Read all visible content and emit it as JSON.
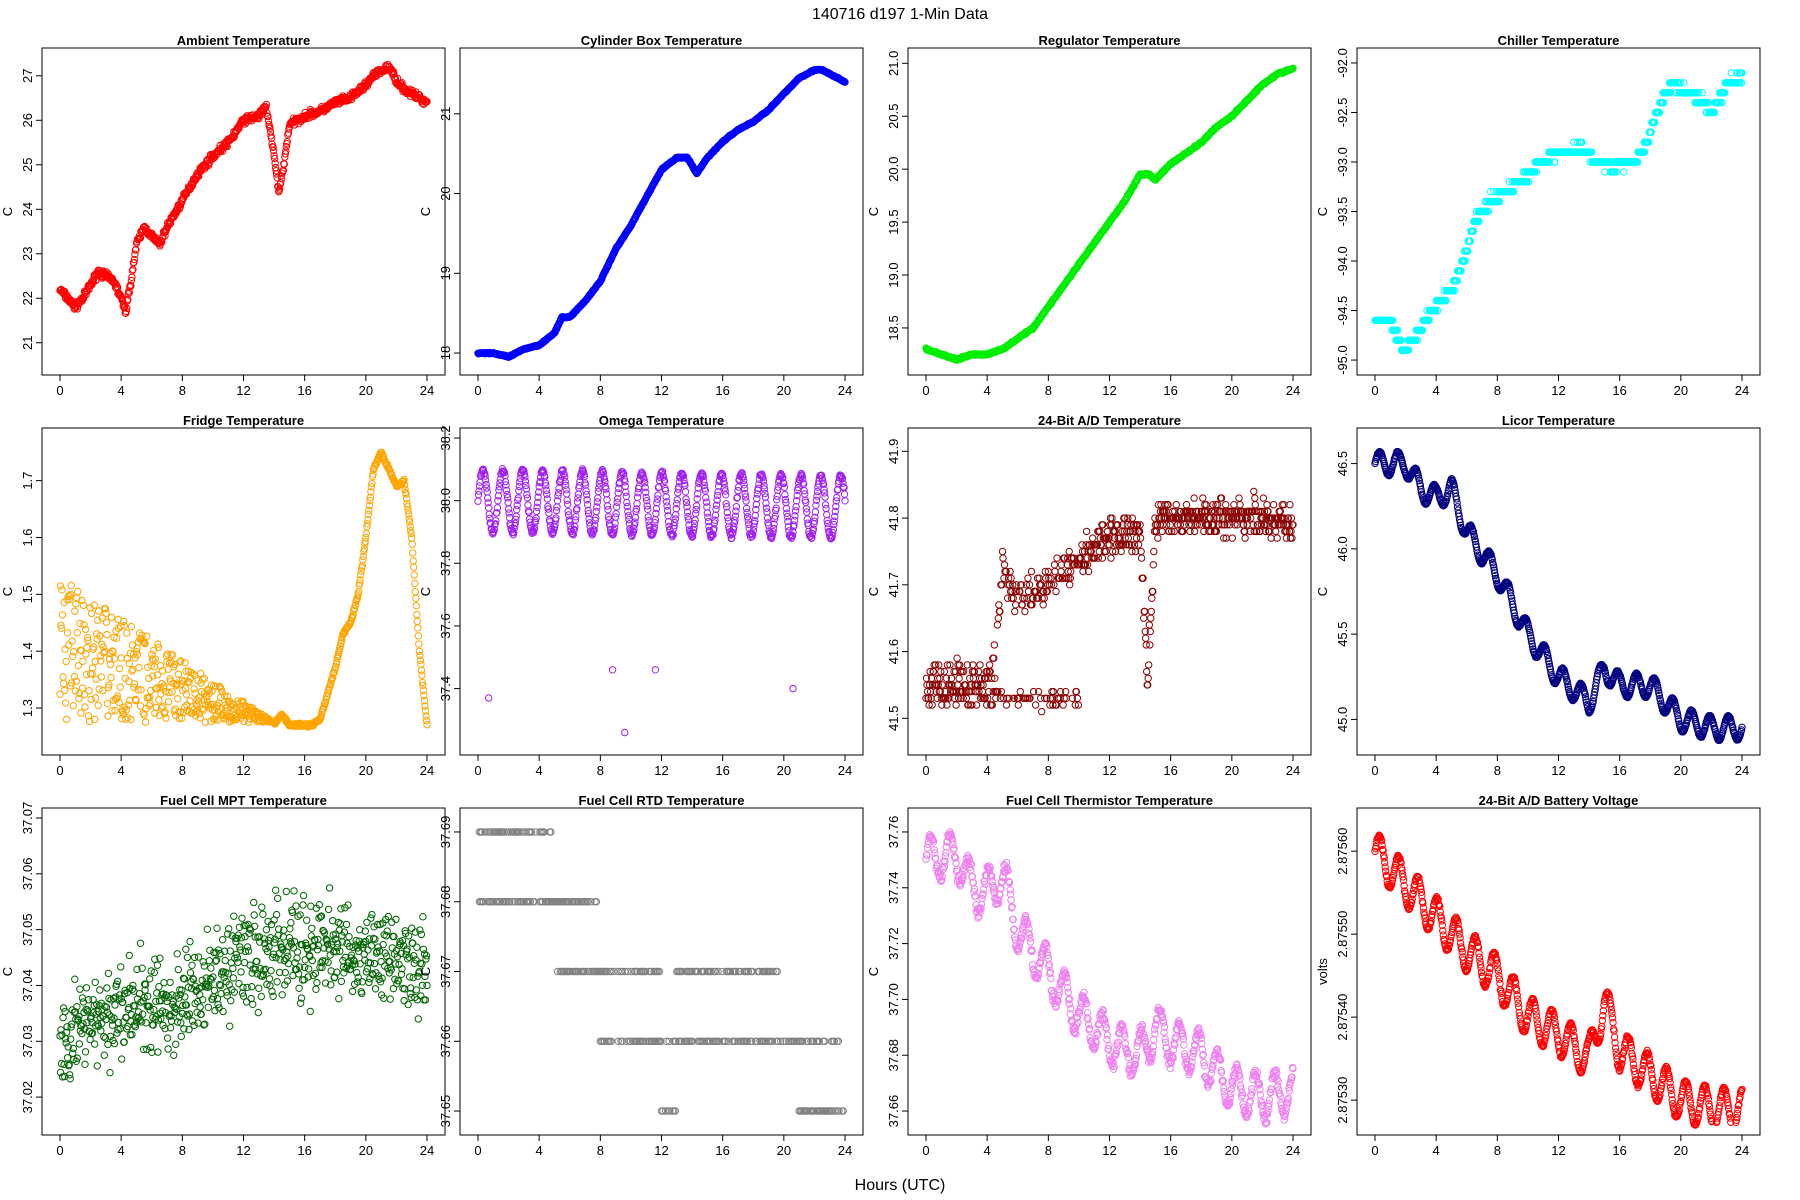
{
  "page": {
    "title": "140716   d197   1-Min Data",
    "xlabel": "Hours (UTC)"
  },
  "chart_data": [
    {
      "type": "scatter",
      "title": "Ambient Temperature",
      "ylabel": "C",
      "color": "#ff0000",
      "xlim": [
        0,
        24
      ],
      "ylim": [
        20.5,
        27.4
      ],
      "yticks": [
        "21",
        "22",
        "23",
        "24",
        "25",
        "26",
        "27"
      ],
      "xticks": [
        "0",
        "4",
        "8",
        "12",
        "16",
        "20",
        "24"
      ],
      "x": [
        0,
        0.5,
        1,
        1.5,
        2,
        2.5,
        3,
        3.5,
        4,
        4.3,
        4.6,
        5,
        5.5,
        6,
        6.5,
        7,
        8,
        9,
        10,
        11,
        12,
        13,
        13.5,
        14,
        14.3,
        14.6,
        15,
        16,
        17,
        18,
        19,
        20,
        20.5,
        21,
        21.5,
        22,
        22.5,
        23,
        23.5,
        24
      ],
      "y": [
        22.2,
        22.0,
        21.8,
        22.0,
        22.3,
        22.6,
        22.5,
        22.4,
        22.0,
        21.7,
        22.3,
        23.2,
        23.6,
        23.4,
        23.2,
        23.6,
        24.2,
        24.8,
        25.2,
        25.5,
        26.0,
        26.1,
        26.3,
        25.2,
        24.4,
        24.9,
        25.9,
        26.1,
        26.2,
        26.4,
        26.5,
        26.8,
        27.0,
        27.1,
        27.2,
        26.9,
        26.7,
        26.6,
        26.5,
        26.4
      ],
      "noise": 0.12
    },
    {
      "type": "scatter",
      "title": "Cylinder Box Temperature",
      "ylabel": "C",
      "color": "#0000ff",
      "xlim": [
        0,
        24
      ],
      "ylim": [
        17.85,
        21.7
      ],
      "yticks": [
        "18",
        "19",
        "20",
        "21"
      ],
      "xticks": [
        "0",
        "4",
        "8",
        "12",
        "16",
        "20",
        "24"
      ],
      "x": [
        0,
        1,
        2,
        3,
        4,
        5,
        5.5,
        6,
        7,
        8,
        9,
        10,
        11,
        12,
        13,
        13.7,
        14.3,
        15,
        16,
        17,
        18,
        19,
        20,
        21,
        22,
        22.5,
        23,
        24
      ],
      "y": [
        18.0,
        18.0,
        17.95,
        18.05,
        18.1,
        18.25,
        18.45,
        18.45,
        18.65,
        18.9,
        19.3,
        19.6,
        19.95,
        20.3,
        20.45,
        20.45,
        20.25,
        20.45,
        20.65,
        20.8,
        20.9,
        21.05,
        21.25,
        21.45,
        21.55,
        21.55,
        21.5,
        21.4
      ],
      "noise": 0.012
    },
    {
      "type": "scatter",
      "title": "Regulator Temperature",
      "ylabel": "C",
      "color": "#00ee00",
      "xlim": [
        0,
        24
      ],
      "ylim": [
        18.15,
        21.05
      ],
      "yticks": [
        "18.5",
        "19.0",
        "19.5",
        "20.0",
        "20.5",
        "21.0"
      ],
      "xticks": [
        "0",
        "4",
        "8",
        "12",
        "16",
        "20",
        "24"
      ],
      "x": [
        0,
        1,
        2,
        3,
        4,
        5,
        5.5,
        6,
        7,
        8,
        9,
        10,
        11,
        12,
        13,
        14,
        14.6,
        15,
        16,
        17,
        18,
        19,
        20,
        21,
        22,
        23,
        24
      ],
      "y": [
        18.3,
        18.25,
        18.2,
        18.25,
        18.25,
        18.3,
        18.35,
        18.4,
        18.5,
        18.7,
        18.9,
        19.1,
        19.3,
        19.5,
        19.7,
        19.95,
        19.95,
        19.9,
        20.05,
        20.15,
        20.25,
        20.4,
        20.5,
        20.65,
        20.8,
        20.9,
        20.95
      ],
      "noise": 0.012
    },
    {
      "type": "scatter",
      "title": "Chiller Temperature",
      "ylabel": "C",
      "color": "#00ffff",
      "xlim": [
        0,
        24
      ],
      "ylim": [
        -95.05,
        -91.95
      ],
      "yticks": [
        "-95.0",
        "-94.5",
        "-94.0",
        "-93.5",
        "-93.0",
        "-92.5",
        "-92.0"
      ],
      "xticks": [
        "0",
        "4",
        "8",
        "12",
        "16",
        "20",
        "24"
      ],
      "x": [
        0,
        1,
        1.8,
        2.5,
        3.3,
        4,
        5,
        6,
        6.5,
        7.5,
        8.5,
        9.5,
        10.5,
        11.5,
        12.5,
        13.5,
        14.5,
        15.5,
        16.5,
        17.5,
        18.2,
        19,
        19.5,
        20.5,
        21.5,
        22,
        22.5,
        23,
        24
      ],
      "y": [
        -94.6,
        -94.6,
        -94.9,
        -94.8,
        -94.6,
        -94.45,
        -94.3,
        -93.9,
        -93.6,
        -93.4,
        -93.3,
        -93.2,
        -93.05,
        -92.95,
        -92.9,
        -92.85,
        -93.0,
        -93.05,
        -93.0,
        -92.9,
        -92.6,
        -92.3,
        -92.2,
        -92.3,
        -92.4,
        -92.5,
        -92.4,
        -92.2,
        -92.15
      ],
      "noise": 0.06,
      "stepY": 0.1
    },
    {
      "type": "scatter",
      "title": "Fridge Temperature",
      "ylabel": "C",
      "color": "#ffa500",
      "xlim": [
        0,
        24
      ],
      "ylim": [
        1.235,
        1.775
      ],
      "yticks": [
        "1.3",
        "1.4",
        "1.5",
        "1.6",
        "1.7"
      ],
      "xticks": [
        "0",
        "4",
        "8",
        "12",
        "16",
        "20",
        "24"
      ],
      "x": [
        0,
        2,
        4,
        6,
        8,
        10,
        12,
        13,
        14,
        14.5,
        15,
        16,
        16.5,
        17,
        18,
        18.5,
        19,
        19.5,
        20,
        20.5,
        21,
        21.5,
        22,
        22.5,
        23,
        23.5,
        24
      ],
      "y": [
        1.3,
        1.3,
        1.3,
        1.3,
        1.3,
        1.3,
        1.28,
        1.27,
        1.27,
        1.29,
        1.27,
        1.27,
        1.27,
        1.28,
        1.37,
        1.43,
        1.45,
        1.5,
        1.6,
        1.72,
        1.75,
        1.72,
        1.69,
        1.7,
        1.6,
        1.4,
        1.27
      ],
      "noise": 0.004,
      "band": {
        "from": 0,
        "to": 14,
        "top0": 1.53,
        "bottom": 1.275
      }
    },
    {
      "type": "scatter",
      "title": "Omega Temperature",
      "ylabel": "C",
      "color": "#a020f0",
      "xlim": [
        0,
        24
      ],
      "ylim": [
        37.22,
        38.2
      ],
      "yticks": [
        "37.4",
        "37.6",
        "37.8",
        "38.0",
        "38.2"
      ],
      "xticks": [
        "0",
        "4",
        "8",
        "12",
        "16",
        "20",
        "24"
      ],
      "x": [
        0,
        24
      ],
      "y": [
        38.0,
        37.98
      ],
      "noise": 0.01,
      "wave": {
        "amp": 0.1,
        "period": 1.3
      },
      "outliers": [
        [
          0.7,
          37.37
        ],
        [
          8.8,
          37.46
        ],
        [
          9.6,
          37.26
        ],
        [
          11.6,
          37.46
        ],
        [
          20.6,
          37.4
        ]
      ]
    },
    {
      "type": "scatter",
      "title": "24-Bit A/D Temperature",
      "ylabel": "C",
      "color": "#8b0000",
      "xlim": [
        0,
        24
      ],
      "ylim": [
        41.46,
        41.92
      ],
      "yticks": [
        "41.5",
        "41.6",
        "41.7",
        "41.8",
        "41.9"
      ],
      "xticks": [
        "0",
        "4",
        "8",
        "12",
        "16",
        "20",
        "24"
      ],
      "x": [
        0,
        2,
        4,
        4.5,
        5,
        6,
        8,
        10,
        12,
        14,
        14.5,
        15,
        16,
        18,
        20,
        22,
        24
      ],
      "y": [
        41.56,
        41.57,
        41.55,
        41.6,
        41.72,
        41.68,
        41.7,
        41.74,
        41.77,
        41.78,
        41.56,
        41.8,
        41.8,
        41.8,
        41.8,
        41.8,
        41.79
      ],
      "noise": 0.04,
      "stepY": 0.01,
      "alt": [
        0,
        10,
        41.53
      ]
    },
    {
      "type": "scatter",
      "title": "Licor Temperature",
      "ylabel": "C",
      "color": "#000080",
      "xlim": [
        0,
        24
      ],
      "ylim": [
        44.85,
        46.65
      ],
      "yticks": [
        "45.0",
        "45.5",
        "46.0",
        "46.5"
      ],
      "xticks": [
        "0",
        "4",
        "8",
        "12",
        "16",
        "20",
        "24"
      ],
      "x": [
        0,
        2,
        3,
        4,
        5,
        6,
        8,
        10,
        12,
        14,
        15,
        16,
        18,
        20,
        22,
        24
      ],
      "y": [
        46.5,
        46.5,
        46.35,
        46.3,
        46.35,
        46.1,
        45.85,
        45.5,
        45.25,
        45.1,
        45.3,
        45.2,
        45.2,
        45.0,
        44.95,
        44.95
      ],
      "noise": 0.005,
      "wave": {
        "amp": 0.07,
        "period": 1.2
      }
    },
    {
      "type": "scatter",
      "title": "Fuel Cell MPT Temperature",
      "ylabel": "C",
      "color": "#006400",
      "xlim": [
        0,
        24
      ],
      "ylim": [
        37.015,
        37.07
      ],
      "yticks": [
        "37.02",
        "37.03",
        "37.04",
        "37.05",
        "37.06",
        "37.07"
      ],
      "xticks": [
        "0",
        "4",
        "8",
        "12",
        "16",
        "20",
        "24"
      ],
      "x": [
        0,
        4,
        8,
        12,
        16,
        20,
        24
      ],
      "y": [
        37.031,
        37.035,
        37.038,
        37.045,
        37.047,
        37.045,
        37.044
      ],
      "noise": 0.013
    },
    {
      "type": "scatter",
      "title": "Fuel Cell RTD Temperature",
      "ylabel": "C",
      "color": "#808080",
      "xlim": [
        0,
        24
      ],
      "ylim": [
        37.648,
        37.692
      ],
      "yticks": [
        "37.65",
        "37.66",
        "37.67",
        "37.68",
        "37.69"
      ],
      "xticks": [
        "0",
        "4",
        "8",
        "12",
        "16",
        "20",
        "24"
      ],
      "x": [
        0,
        24
      ],
      "y": [
        37.67,
        37.67
      ],
      "levels": [
        [
          0,
          4.9,
          37.69
        ],
        [
          0,
          7.8,
          37.68
        ],
        [
          5.2,
          12,
          37.67
        ],
        [
          13,
          19.6,
          37.67
        ],
        [
          8,
          23.6,
          37.66
        ],
        [
          21,
          24,
          37.65
        ],
        [
          12,
          13,
          37.65
        ]
      ]
    },
    {
      "type": "scatter",
      "title": "Fuel Cell Thermistor Temperature",
      "ylabel": "C",
      "color": "#ee82ee",
      "xlim": [
        0,
        24
      ],
      "ylim": [
        37.655,
        37.765
      ],
      "yticks": [
        "37.66",
        "37.68",
        "37.70",
        "37.72",
        "37.74",
        "37.76"
      ],
      "xticks": [
        "0",
        "4",
        "8",
        "12",
        "16",
        "20",
        "24"
      ],
      "x": [
        0,
        2,
        3,
        4,
        5,
        6,
        8,
        10,
        12,
        14,
        15,
        16,
        18,
        20,
        22,
        24
      ],
      "y": [
        37.75,
        37.752,
        37.74,
        37.738,
        37.745,
        37.725,
        37.71,
        37.695,
        37.685,
        37.68,
        37.69,
        37.685,
        37.68,
        37.668,
        37.665,
        37.667
      ],
      "noise": 0.003,
      "wave": {
        "amp": 0.008,
        "period": 1.25
      }
    },
    {
      "type": "scatter",
      "title": "24-Bit A/D Battery Voltage",
      "ylabel": "volts",
      "color": "#ff0000",
      "xlim": [
        0,
        24
      ],
      "ylim": [
        2.87527,
        2.87564
      ],
      "yticks": [
        "2.87530",
        "2.87540",
        "2.87550",
        "2.87560"
      ],
      "xticks": [
        "0",
        "4",
        "8",
        "12",
        "16",
        "20",
        "24"
      ],
      "x": [
        0,
        2,
        4,
        6,
        8,
        10,
        12,
        14,
        15,
        16,
        18,
        20,
        22,
        24
      ],
      "y": [
        2.8756,
        2.87556,
        2.87552,
        2.87548,
        2.87545,
        2.8754,
        2.87538,
        2.87535,
        2.87542,
        2.87536,
        2.87533,
        2.8753,
        2.87529,
        2.87529
      ],
      "noise": 3e-06,
      "wave": {
        "amp": 2.5e-05,
        "period": 1.25
      }
    }
  ]
}
